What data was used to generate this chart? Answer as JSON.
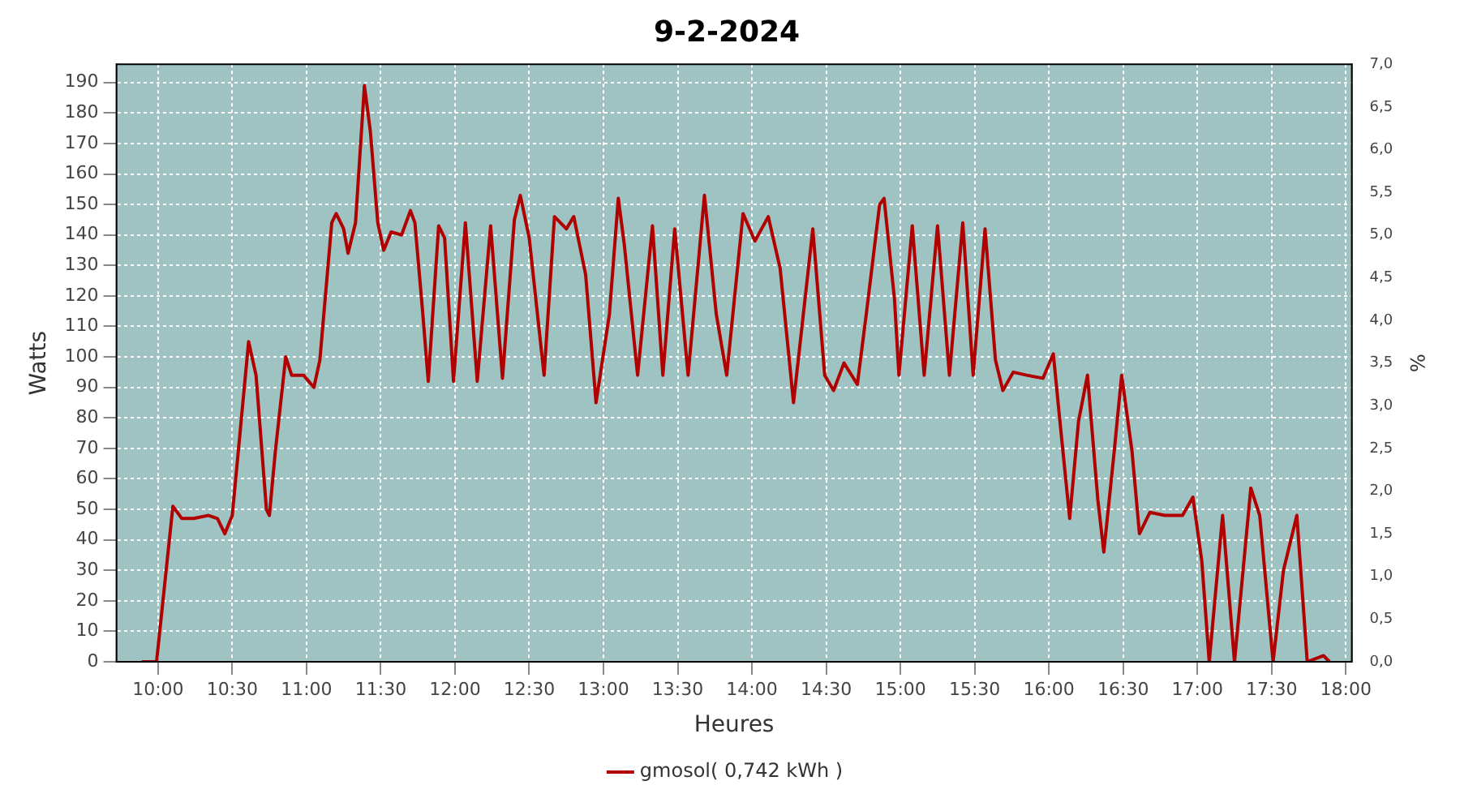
{
  "chart_data": {
    "type": "line",
    "title": "9-2-2024",
    "xlabel": "Heures",
    "ylabel": "Watts",
    "y2label": "%",
    "x": [
      9.89,
      9.99,
      10.1,
      10.16,
      10.24,
      10.34,
      10.4,
      10.45,
      10.5,
      10.61,
      10.66,
      10.73,
      10.75,
      10.79,
      10.86,
      10.9,
      10.98,
      11.05,
      11.09,
      11.17,
      11.2,
      11.25,
      11.28,
      11.33,
      11.39,
      11.43,
      11.48,
      11.52,
      11.57,
      11.64,
      11.7,
      11.73,
      11.78,
      11.82,
      11.89,
      11.93,
      11.99,
      12.07,
      12.15,
      12.24,
      12.32,
      12.4,
      12.44,
      12.5,
      12.6,
      12.67,
      12.75,
      12.8,
      12.88,
      12.95,
      13.04,
      13.1,
      13.14,
      13.23,
      13.33,
      13.4,
      13.48,
      13.57,
      13.68,
      13.76,
      13.83,
      13.94,
      14.02,
      14.11,
      14.19,
      14.28,
      14.41,
      14.49,
      14.55,
      14.62,
      14.71,
      14.77,
      14.86,
      14.89,
      14.96,
      14.99,
      15.08,
      15.16,
      15.25,
      15.33,
      15.42,
      15.49,
      15.57,
      15.64,
      15.69,
      15.76,
      15.85,
      15.96,
      16.03,
      16.07,
      16.14,
      16.2,
      16.26,
      16.33,
      16.37,
      16.44,
      16.49,
      16.56,
      16.61,
      16.68,
      16.78,
      16.9,
      16.97,
      17.03,
      17.08,
      17.17,
      17.25,
      17.36,
      17.42,
      17.51,
      17.58,
      17.67,
      17.74,
      17.85,
      17.89
    ],
    "series": [
      {
        "name": "gmosol( 0,742 kWh )",
        "color": "#b00000",
        "axis": "y",
        "values": [
          0,
          0,
          51,
          47,
          47,
          48,
          47,
          42,
          48,
          105,
          94,
          50,
          48,
          69,
          100,
          94,
          94,
          90,
          99,
          144,
          147,
          142,
          134,
          144,
          189,
          174,
          144,
          135,
          141,
          140,
          148,
          144,
          116,
          92,
          143,
          139,
          92,
          144,
          92,
          143,
          93,
          145,
          153,
          139,
          94,
          146,
          142,
          146,
          127,
          85,
          114,
          152,
          137,
          94,
          143,
          94,
          142,
          94,
          153,
          114,
          94,
          147,
          138,
          146,
          129,
          85,
          142,
          94,
          89,
          98,
          91,
          114,
          150,
          152,
          119,
          94,
          143,
          94,
          143,
          94,
          144,
          94,
          142,
          99,
          89,
          95,
          94,
          93,
          101,
          81,
          47,
          79,
          94,
          53,
          36,
          69,
          94,
          69,
          42,
          49,
          48,
          48,
          54,
          33,
          0,
          48,
          0,
          57,
          48,
          0,
          30,
          48,
          0,
          2,
          0
        ]
      }
    ],
    "xlim": [
      9.72,
      18.04
    ],
    "xticks": [
      {
        "value": 10,
        "label": "10:00"
      },
      {
        "value": 10.5,
        "label": "10:30"
      },
      {
        "value": 11,
        "label": "11:00"
      },
      {
        "value": 11.5,
        "label": "11:30"
      },
      {
        "value": 12,
        "label": "12:00"
      },
      {
        "value": 12.5,
        "label": "12:30"
      },
      {
        "value": 13,
        "label": "13:00"
      },
      {
        "value": 13.5,
        "label": "13:30"
      },
      {
        "value": 14,
        "label": "14:00"
      },
      {
        "value": 14.5,
        "label": "14:30"
      },
      {
        "value": 15,
        "label": "15:00"
      },
      {
        "value": 15.5,
        "label": "15:30"
      },
      {
        "value": 16,
        "label": "16:00"
      },
      {
        "value": 16.5,
        "label": "16:30"
      },
      {
        "value": 17,
        "label": "17:00"
      },
      {
        "value": 17.5,
        "label": "17:30"
      },
      {
        "value": 18,
        "label": "18:00"
      }
    ],
    "ylim": [
      0,
      196
    ],
    "yticks": [
      0,
      10,
      20,
      30,
      40,
      50,
      60,
      70,
      80,
      90,
      100,
      110,
      120,
      130,
      140,
      150,
      160,
      170,
      180,
      190
    ],
    "y2lim": [
      0,
      7
    ],
    "y2ticks": [
      {
        "value": 0,
        "label": "0,0"
      },
      {
        "value": 0.5,
        "label": "0,5"
      },
      {
        "value": 1,
        "label": "1,0"
      },
      {
        "value": 1.5,
        "label": "1,5"
      },
      {
        "value": 2,
        "label": "2,0"
      },
      {
        "value": 2.5,
        "label": "2,5"
      },
      {
        "value": 3,
        "label": "3,0"
      },
      {
        "value": 3.5,
        "label": "3,5"
      },
      {
        "value": 4,
        "label": "4,0"
      },
      {
        "value": 4.5,
        "label": "4,5"
      },
      {
        "value": 5,
        "label": "5,0"
      },
      {
        "value": 5.5,
        "label": "5,5"
      },
      {
        "value": 6,
        "label": "6,0"
      },
      {
        "value": 6.5,
        "label": "6,5"
      },
      {
        "value": 7,
        "label": "7,0"
      }
    ],
    "grid": true,
    "legend": "bottom",
    "marker": "none",
    "line_style": "solid"
  }
}
